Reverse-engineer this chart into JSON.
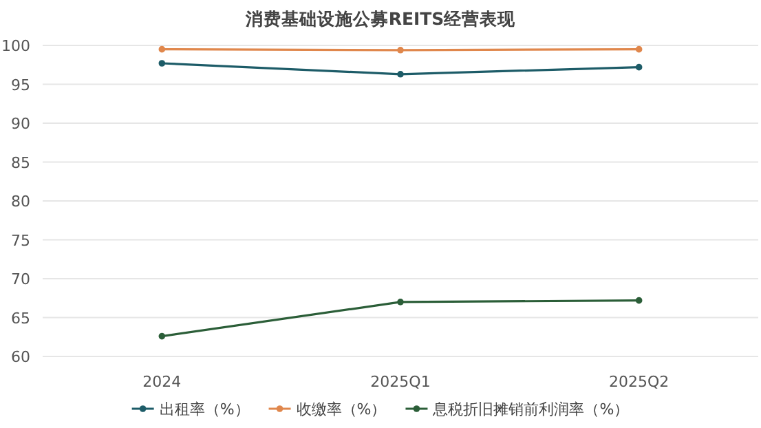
{
  "chart_data": {
    "type": "line",
    "title": "消费基础设施公募REITS经营表现",
    "categories": [
      "2024",
      "2025Q1",
      "2025Q2"
    ],
    "series": [
      {
        "name": "出租率（%）",
        "color": "#1d5c68",
        "values": [
          97.7,
          96.3,
          97.2
        ]
      },
      {
        "name": "收缴率（%）",
        "color": "#e0874c",
        "values": [
          99.5,
          99.4,
          99.5
        ]
      },
      {
        "name": "息税折旧摊销前利润率（%）",
        "color": "#2b5e38",
        "values": [
          62.6,
          67.0,
          67.2
        ]
      }
    ],
    "ylim": [
      60,
      100
    ],
    "yticks": [
      60,
      65,
      70,
      75,
      80,
      85,
      90,
      95,
      100
    ],
    "grid": "y",
    "legend": "bottom",
    "marker": "circle",
    "line_style": "solid"
  }
}
